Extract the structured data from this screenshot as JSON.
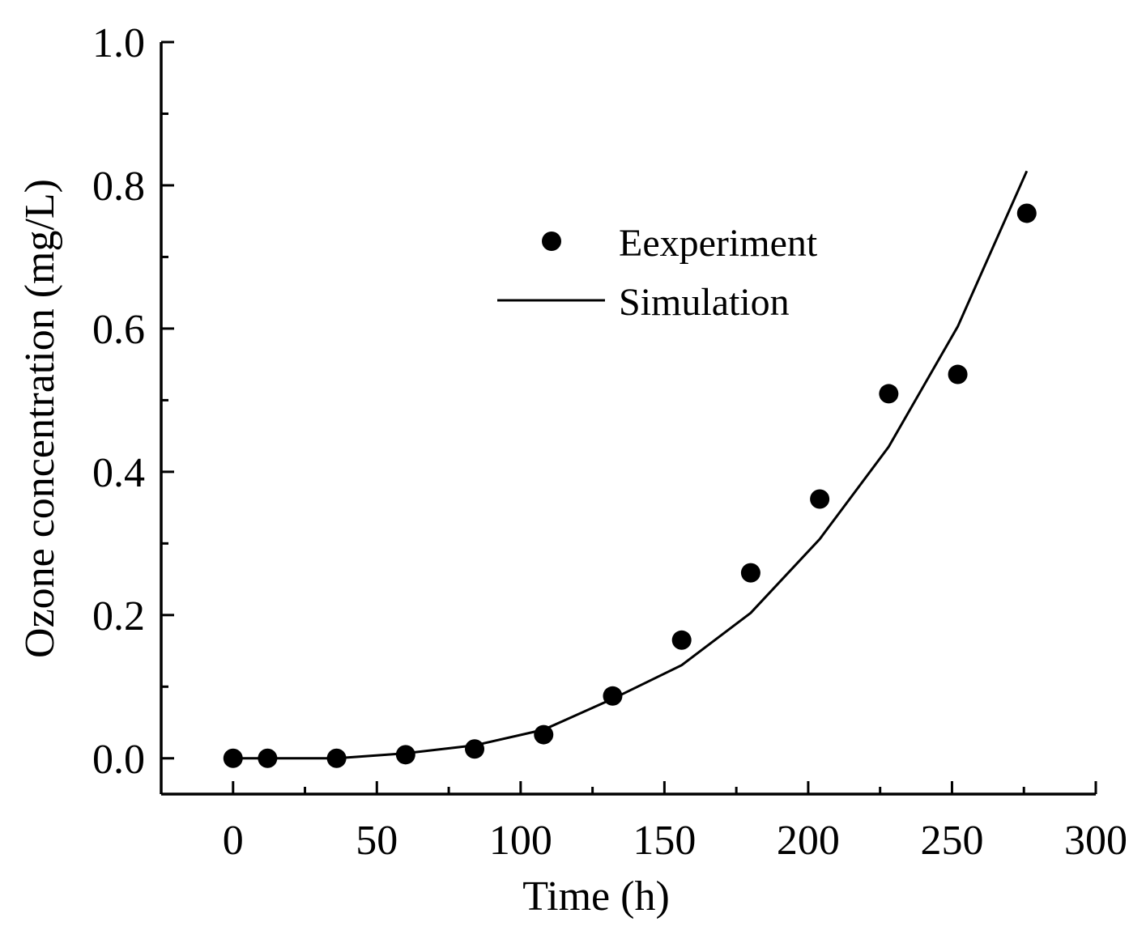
{
  "chart_data": {
    "type": "scatter",
    "title": "",
    "xlabel": "Time (h)",
    "ylabel": "Ozone concentration (mg/L)",
    "xlim": [
      -25,
      300
    ],
    "ylim": [
      -0.05,
      1.0
    ],
    "xticks": [
      0,
      50,
      100,
      150,
      200,
      250,
      300
    ],
    "yticks": [
      0.0,
      0.2,
      0.4,
      0.6,
      0.8,
      1.0
    ],
    "xtick_labels": [
      "0",
      "50",
      "100",
      "150",
      "200",
      "250",
      "300"
    ],
    "ytick_labels": [
      "0.0",
      "0.2",
      "0.4",
      "0.6",
      "0.8",
      "1.0"
    ],
    "grid": false,
    "legend_position": "upper-center",
    "series": [
      {
        "name": "Eexperiment",
        "kind": "scatter",
        "color": "#000000",
        "x": [
          0,
          12,
          36,
          60,
          84,
          108,
          132,
          156,
          180,
          204,
          228,
          252,
          276
        ],
        "y": [
          0.0,
          0.0,
          0.0,
          0.005,
          0.013,
          0.033,
          0.087,
          0.165,
          0.259,
          0.362,
          0.509,
          0.536,
          0.761
        ]
      },
      {
        "name": "Simulation",
        "kind": "line",
        "color": "#000000",
        "x": [
          0,
          12,
          36,
          60,
          84,
          108,
          132,
          156,
          180,
          204,
          228,
          252,
          276
        ],
        "y": [
          0.0,
          0.0,
          0.0,
          0.007,
          0.018,
          0.04,
          0.083,
          0.13,
          0.203,
          0.306,
          0.435,
          0.603,
          0.82
        ]
      }
    ]
  }
}
